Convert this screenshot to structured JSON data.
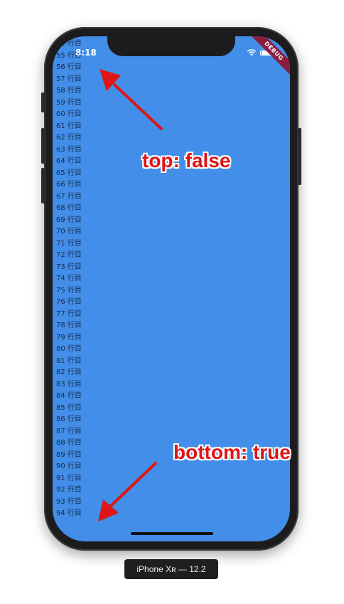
{
  "status_bar": {
    "time": "8:18",
    "debug_label": "DEBUG"
  },
  "list": {
    "rows": [
      "54 行目",
      "55 行目",
      "56 行目",
      "57 行目",
      "58 行目",
      "59 行目",
      "60 行目",
      "61 行目",
      "62 行目",
      "63 行目",
      "64 行目",
      "65 行目",
      "66 行目",
      "67 行目",
      "68 行目",
      "69 行目",
      "70 行目",
      "71 行目",
      "72 行目",
      "73 行目",
      "74 行目",
      "75 行目",
      "76 行目",
      "77 行目",
      "78 行目",
      "79 行目",
      "80 行目",
      "81 行目",
      "82 行目",
      "83 行目",
      "84 行目",
      "85 行目",
      "86 行目",
      "87 行目",
      "88 行目",
      "89 行目",
      "90 行目",
      "91 行目",
      "92 行目",
      "93 行目",
      "94 行目"
    ]
  },
  "annotations": {
    "top": "top: false",
    "bottom": "bottom: true"
  },
  "device_label": "iPhone Xʀ — 12.2",
  "colors": {
    "screen_bg": "#428ee8",
    "annotation": "#e01515"
  }
}
